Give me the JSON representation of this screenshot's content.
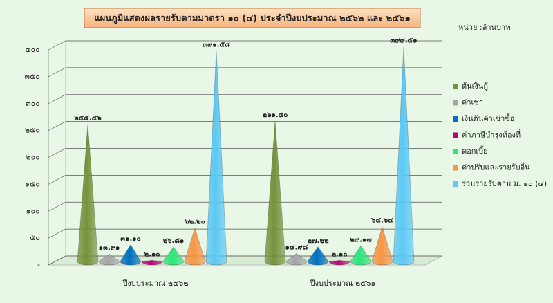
{
  "chart_data": {
    "type": "cone",
    "title": "แผนภูมิแสดงผลรายรับตามมาตรา ๑๐ (๔) ประจำปีงบประมาณ ๒๕๖๒ และ ๒๕๖๑",
    "unit": "หน่วย :ล้านบาท",
    "categories": [
      "ปีงบประมาณ ๒๕๖๒",
      "ปีงบประมาณ ๒๕๖๑"
    ],
    "series": [
      {
        "name": "ต้นเงินกู้",
        "color": "#76923c",
        "values": [
          255.46,
          261.4
        ],
        "value_labels": [
          "๒๕๕.๔๖",
          "๒๖๑.๔๐"
        ]
      },
      {
        "name": "ค่าเช่า",
        "color": "#a6a6a6",
        "values": [
          13.91,
          14.98
        ],
        "value_labels": [
          "๑๓.๙๑",
          "๑๔.๙๘"
        ]
      },
      {
        "name": "เงินต้นค่าเช่าซื้อ",
        "color": "#0070c0",
        "values": [
          31.1,
          27.22
        ],
        "value_labels": [
          "๓๑.๑๐",
          "๒๗.๒๒"
        ]
      },
      {
        "name": "ค่าภาษีบำรุงท้องที่",
        "color": "#c0007a",
        "values": [
          2.1,
          2.1
        ],
        "value_labels": [
          "๒.๑๐",
          "๒.๑๐"
        ]
      },
      {
        "name": "ดอกเบี้ย",
        "color": "#2ee67a",
        "values": [
          26.81,
          29.17
        ],
        "value_labels": [
          "๒๖.๘๑",
          "๒๙.๑๗"
        ]
      },
      {
        "name": "ค่าปรับและรายรับอื่น",
        "color": "#f79646",
        "values": [
          62.2,
          64.64
        ],
        "value_labels": [
          "๖๒.๒๐",
          "๖๔.๖๔"
        ]
      },
      {
        "name": "รวมรายรับตาม ม. ๑๐ (๔)",
        "color": "#5bc8f5",
        "values": [
          391.58,
          399.51
        ],
        "value_labels": [
          "๓๙๑.๕๘",
          "๓๙๙.๕๑"
        ]
      }
    ],
    "ylim": [
      0,
      400
    ],
    "yticks": [
      {
        "value": 0,
        "label": "-"
      },
      {
        "value": 50,
        "label": "๕๐"
      },
      {
        "value": 100,
        "label": "๑๐๐"
      },
      {
        "value": 150,
        "label": "๑๕๐"
      },
      {
        "value": 200,
        "label": "๒๐๐"
      },
      {
        "value": 250,
        "label": "๒๕๐"
      },
      {
        "value": 300,
        "label": "๓๐๐"
      },
      {
        "value": 350,
        "label": "๓๕๐"
      },
      {
        "value": 400,
        "label": "๔๐๐"
      }
    ],
    "grid": true
  }
}
